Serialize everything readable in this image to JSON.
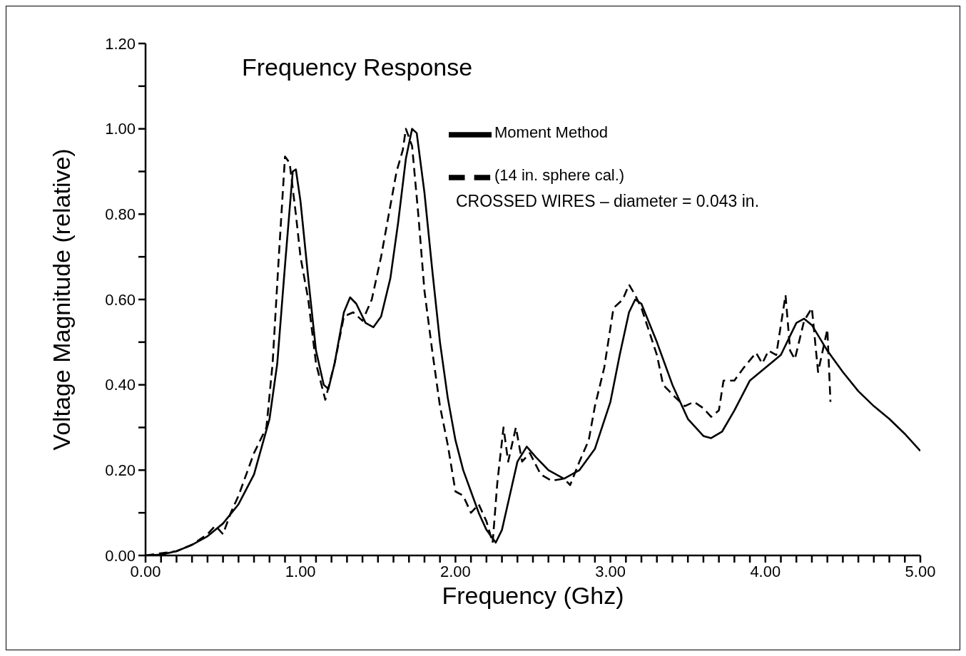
{
  "chart_data": {
    "type": "line",
    "title": "Frequency Response",
    "xlabel": "Frequency  (Ghz)",
    "ylabel": "Voltage  Magnitude  (relative)",
    "annotations": [
      "CROSSED WIRES  –  diameter  =  0.043  in."
    ],
    "xlim": [
      0,
      5
    ],
    "ylim": [
      0,
      1.2
    ],
    "xticks": [
      {
        "value": 0,
        "label": "0.00"
      },
      {
        "value": 0.1,
        "label": null
      },
      {
        "value": 0.2,
        "label": null
      },
      {
        "value": 0.3,
        "label": null
      },
      {
        "value": 0.4,
        "label": null
      },
      {
        "value": 0.5,
        "label": null
      },
      {
        "value": 0.6,
        "label": null
      },
      {
        "value": 0.7,
        "label": null
      },
      {
        "value": 0.8,
        "label": null
      },
      {
        "value": 0.9,
        "label": null
      },
      {
        "value": 1,
        "label": "1.00"
      },
      {
        "value": 1.1,
        "label": null
      },
      {
        "value": 1.2,
        "label": null
      },
      {
        "value": 1.3,
        "label": null
      },
      {
        "value": 1.4,
        "label": null
      },
      {
        "value": 1.5,
        "label": null
      },
      {
        "value": 1.6,
        "label": null
      },
      {
        "value": 1.7,
        "label": null
      },
      {
        "value": 1.8,
        "label": null
      },
      {
        "value": 1.9,
        "label": null
      },
      {
        "value": 2,
        "label": "2.00"
      },
      {
        "value": 2.1,
        "label": null
      },
      {
        "value": 2.2,
        "label": null
      },
      {
        "value": 2.3,
        "label": null
      },
      {
        "value": 2.4,
        "label": null
      },
      {
        "value": 2.5,
        "label": null
      },
      {
        "value": 2.6,
        "label": null
      },
      {
        "value": 2.7,
        "label": null
      },
      {
        "value": 2.8,
        "label": null
      },
      {
        "value": 2.9,
        "label": null
      },
      {
        "value": 3,
        "label": "3.00"
      },
      {
        "value": 3.1,
        "label": null
      },
      {
        "value": 3.2,
        "label": null
      },
      {
        "value": 3.3,
        "label": null
      },
      {
        "value": 3.4,
        "label": null
      },
      {
        "value": 3.5,
        "label": null
      },
      {
        "value": 3.6,
        "label": null
      },
      {
        "value": 3.7,
        "label": null
      },
      {
        "value": 3.8,
        "label": null
      },
      {
        "value": 3.9,
        "label": null
      },
      {
        "value": 4,
        "label": "4.00"
      },
      {
        "value": 4.1,
        "label": null
      },
      {
        "value": 4.2,
        "label": null
      },
      {
        "value": 4.3,
        "label": null
      },
      {
        "value": 4.4,
        "label": null
      },
      {
        "value": 4.5,
        "label": null
      },
      {
        "value": 4.6,
        "label": null
      },
      {
        "value": 4.7,
        "label": null
      },
      {
        "value": 4.8,
        "label": null
      },
      {
        "value": 4.9,
        "label": null
      },
      {
        "value": 5,
        "label": "5.00"
      }
    ],
    "yticks": [
      {
        "value": 0,
        "label": "0.00"
      },
      {
        "value": 0.1,
        "label": null
      },
      {
        "value": 0.2,
        "label": "0.20"
      },
      {
        "value": 0.3,
        "label": null
      },
      {
        "value": 0.4,
        "label": "0.40"
      },
      {
        "value": 0.5,
        "label": null
      },
      {
        "value": 0.6,
        "label": "0.60"
      },
      {
        "value": 0.7,
        "label": null
      },
      {
        "value": 0.8,
        "label": "0.80"
      },
      {
        "value": 0.9,
        "label": null
      },
      {
        "value": 1,
        "label": "1.00"
      },
      {
        "value": 1.1,
        "label": null
      },
      {
        "value": 1.2,
        "label": "1.20"
      }
    ],
    "grid": false,
    "legend": "top right",
    "marker": "none",
    "series": [
      {
        "name": "Moment Method",
        "color": "#000000",
        "line_style": "solid",
        "x": [
          0,
          0.1,
          0.2,
          0.3,
          0.4,
          0.5,
          0.6,
          0.7,
          0.8,
          0.85,
          0.9,
          0.95,
          0.97,
          1.0,
          1.05,
          1.1,
          1.15,
          1.18,
          1.22,
          1.28,
          1.32,
          1.36,
          1.42,
          1.47,
          1.52,
          1.58,
          1.63,
          1.68,
          1.72,
          1.75,
          1.8,
          1.85,
          1.9,
          1.95,
          2.0,
          2.05,
          2.1,
          2.15,
          2.2,
          2.26,
          2.3,
          2.35,
          2.4,
          2.46,
          2.52,
          2.6,
          2.7,
          2.8,
          2.9,
          3.0,
          3.06,
          3.12,
          3.16,
          3.2,
          3.3,
          3.4,
          3.5,
          3.6,
          3.65,
          3.72,
          3.8,
          3.9,
          4.0,
          4.1,
          4.2,
          4.25,
          4.3,
          4.4,
          4.5,
          4.6,
          4.7,
          4.8,
          4.9,
          5.0
        ],
        "values": [
          0,
          0.002,
          0.01,
          0.025,
          0.045,
          0.075,
          0.12,
          0.19,
          0.32,
          0.45,
          0.68,
          0.9,
          0.905,
          0.83,
          0.65,
          0.48,
          0.4,
          0.39,
          0.45,
          0.57,
          0.605,
          0.59,
          0.545,
          0.535,
          0.56,
          0.65,
          0.78,
          0.93,
          1.0,
          0.99,
          0.85,
          0.67,
          0.5,
          0.37,
          0.27,
          0.2,
          0.15,
          0.1,
          0.06,
          0.03,
          0.06,
          0.14,
          0.22,
          0.255,
          0.23,
          0.2,
          0.18,
          0.2,
          0.25,
          0.36,
          0.47,
          0.57,
          0.6,
          0.59,
          0.5,
          0.4,
          0.32,
          0.28,
          0.275,
          0.29,
          0.34,
          0.41,
          0.44,
          0.47,
          0.545,
          0.555,
          0.54,
          0.48,
          0.43,
          0.385,
          0.35,
          0.32,
          0.285,
          0.245
        ]
      },
      {
        "name": "(14 in. sphere cal.)",
        "color": "#000000",
        "line_style": "dashed",
        "x": [
          0,
          0.2,
          0.3,
          0.4,
          0.45,
          0.5,
          0.55,
          0.6,
          0.7,
          0.78,
          0.82,
          0.86,
          0.9,
          0.93,
          0.97,
          1.0,
          1.05,
          1.1,
          1.16,
          1.22,
          1.28,
          1.34,
          1.4,
          1.46,
          1.52,
          1.58,
          1.62,
          1.66,
          1.68,
          1.72,
          1.76,
          1.8,
          1.85,
          1.9,
          1.95,
          2.0,
          2.05,
          2.1,
          2.15,
          2.2,
          2.24,
          2.27,
          2.31,
          2.34,
          2.39,
          2.43,
          2.48,
          2.55,
          2.62,
          2.7,
          2.74,
          2.8,
          2.86,
          2.9,
          2.96,
          3.02,
          3.08,
          3.12,
          3.16,
          3.2,
          3.3,
          3.34,
          3.42,
          3.48,
          3.54,
          3.6,
          3.65,
          3.7,
          3.73,
          3.8,
          3.86,
          3.94,
          3.98,
          4.02,
          4.07,
          4.13,
          4.16,
          4.19,
          4.25,
          4.3,
          4.34,
          4.4,
          4.42
        ],
        "values": [
          0,
          0.01,
          0.025,
          0.05,
          0.07,
          0.05,
          0.1,
          0.14,
          0.24,
          0.3,
          0.45,
          0.7,
          0.935,
          0.92,
          0.8,
          0.7,
          0.6,
          0.45,
          0.365,
          0.45,
          0.56,
          0.57,
          0.55,
          0.6,
          0.7,
          0.82,
          0.9,
          0.95,
          1.0,
          0.96,
          0.8,
          0.62,
          0.48,
          0.35,
          0.26,
          0.15,
          0.14,
          0.1,
          0.12,
          0.08,
          0.03,
          0.17,
          0.3,
          0.22,
          0.3,
          0.22,
          0.24,
          0.19,
          0.175,
          0.18,
          0.165,
          0.22,
          0.27,
          0.35,
          0.44,
          0.58,
          0.6,
          0.635,
          0.61,
          0.58,
          0.47,
          0.4,
          0.37,
          0.35,
          0.36,
          0.345,
          0.325,
          0.34,
          0.41,
          0.41,
          0.44,
          0.475,
          0.45,
          0.48,
          0.47,
          0.61,
          0.48,
          0.46,
          0.55,
          0.58,
          0.43,
          0.53,
          0.36
        ]
      }
    ]
  }
}
